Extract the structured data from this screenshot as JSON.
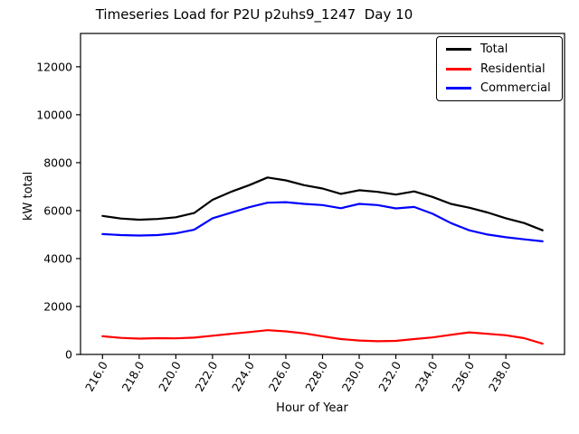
{
  "figure": {
    "background": "#ffffff"
  },
  "chart_data": {
    "type": "line",
    "title": "Timeseries Load for P2U p2uhs9_1247  Day 10",
    "xlabel": "Hour of Year",
    "ylabel": "kW total",
    "grid": false,
    "legend_position": "upper right",
    "xlim": [
      214.8,
      241.2
    ],
    "ylim": [
      0,
      13390
    ],
    "x_ticks": [
      216,
      218,
      220,
      222,
      224,
      226,
      228,
      230,
      232,
      234,
      236,
      238
    ],
    "x_tick_labels": [
      "216.0",
      "218.0",
      "220.0",
      "222.0",
      "224.0",
      "226.0",
      "228.0",
      "230.0",
      "232.0",
      "234.0",
      "236.0",
      "238.0"
    ],
    "x_tick_rotation": 60,
    "y_ticks": [
      0,
      2000,
      4000,
      6000,
      8000,
      10000,
      12000
    ],
    "y_tick_labels": [
      "0",
      "2000",
      "4000",
      "6000",
      "8000",
      "10000",
      "12000"
    ],
    "x": [
      216,
      217,
      218,
      219,
      220,
      221,
      222,
      223,
      224,
      225,
      226,
      227,
      228,
      229,
      230,
      231,
      232,
      233,
      234,
      235,
      236,
      237,
      238,
      239,
      240
    ],
    "series": [
      {
        "name": "Total",
        "color": "#000000",
        "values": [
          5780,
          5670,
          5620,
          5650,
          5720,
          5900,
          6450,
          6780,
          7060,
          7380,
          7260,
          7060,
          6920,
          6700,
          6850,
          6780,
          6670,
          6800,
          6570,
          6280,
          6120,
          5920,
          5680,
          5480,
          5180
        ]
      },
      {
        "name": "Residential",
        "color": "#ff0000",
        "values": [
          760,
          690,
          660,
          680,
          670,
          700,
          780,
          860,
          930,
          1010,
          960,
          880,
          760,
          640,
          580,
          550,
          565,
          640,
          710,
          820,
          920,
          860,
          800,
          680,
          450
        ]
      },
      {
        "name": "Commercial",
        "color": "#0000ff",
        "values": [
          5020,
          4980,
          4960,
          4980,
          5050,
          5200,
          5680,
          5910,
          6140,
          6330,
          6350,
          6280,
          6230,
          6100,
          6280,
          6230,
          6090,
          6150,
          5870,
          5480,
          5180,
          5000,
          4890,
          4800,
          4720
        ]
      }
    ]
  }
}
